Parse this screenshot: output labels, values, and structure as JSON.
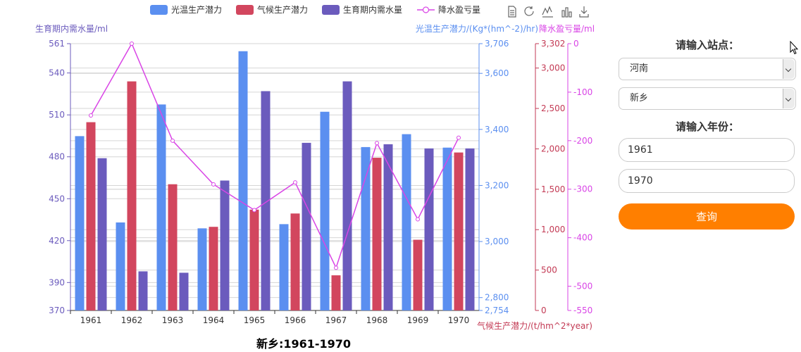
{
  "toolbar": {
    "icons": [
      "data-view-icon",
      "restore-icon",
      "line-switch-icon",
      "bar-switch-icon",
      "download-icon"
    ]
  },
  "form": {
    "station_label": "请输入站点：",
    "province_value": "河南",
    "city_value": "新乡",
    "year_label": "请输入年份：",
    "start_year": "1961",
    "end_year": "1970",
    "query_label": "查询",
    "query_color": "#ff7f00"
  },
  "chart_data": {
    "type": "bar",
    "title": "新乡:1961-1970",
    "categories": [
      "1961",
      "1962",
      "1963",
      "1964",
      "1965",
      "1966",
      "1967",
      "1968",
      "1969",
      "1970"
    ],
    "axes": {
      "water_demand": {
        "label": "生育期内需水量/ml",
        "color": "#6b5bbd",
        "range": [
          370,
          561
        ],
        "tick_values": [
          370,
          390,
          420,
          450,
          480,
          510,
          540,
          561
        ],
        "tick_labels": [
          "370",
          "390",
          "420",
          "450",
          "480",
          "510",
          "540",
          "561"
        ]
      },
      "light_temp": {
        "label": "光温生产潜力/(Kg*(hm^-2)/hr)",
        "color": "#5b8ff0",
        "range": [
          2754,
          3706
        ],
        "tick_values": [
          2754,
          2800,
          3000,
          3200,
          3400,
          3600,
          3706
        ],
        "tick_labels": [
          "2,754",
          "2,800",
          "3,000",
          "3,200",
          "3,400",
          "3,600",
          "3,706"
        ]
      },
      "climate": {
        "label": "气候生产潜力/(t/hm^2*year)",
        "color": "#c33a54",
        "range": [
          0,
          3302
        ],
        "tick_values": [
          0,
          500,
          1000,
          1500,
          2000,
          2500,
          3000,
          3302
        ],
        "tick_labels": [
          "0",
          "500",
          "1,000",
          "1,500",
          "2,000",
          "2,500",
          "3,000",
          "3,302"
        ]
      },
      "deficit": {
        "label": "降水盈亏量/ml",
        "color": "#d945e6",
        "range": [
          -550,
          0
        ],
        "tick_values": [
          -550,
          -500,
          -400,
          -300,
          -200,
          -100,
          0
        ],
        "tick_labels": [
          "-550",
          "-500",
          "-400",
          "-300",
          "-200",
          "-100",
          "0"
        ]
      }
    },
    "series": [
      {
        "name": "光温生产潜力",
        "type": "bar",
        "axis": "light_temp",
        "color": "#5b8ff0",
        "values": [
          3376,
          3068,
          3489,
          3047,
          3679,
          3062,
          3463,
          3337,
          3383,
          3335
        ]
      },
      {
        "name": "气候生产潜力",
        "type": "bar",
        "axis": "climate",
        "color": "#d2465e",
        "values": [
          2330,
          2835,
          1562,
          1035,
          1248,
          1200,
          435,
          1890,
          875,
          1955
        ]
      },
      {
        "name": "生育期内需水量",
        "type": "bar",
        "axis": "water_demand",
        "color": "#6b5bbd",
        "values": [
          479,
          398,
          397,
          463,
          527,
          490,
          534,
          489,
          486,
          486
        ]
      },
      {
        "name": "降水盈亏量",
        "type": "line",
        "axis": "deficit",
        "color": "#d945e6",
        "values": [
          -148,
          0,
          -200,
          -290,
          -343,
          -286,
          -462,
          -205,
          -362,
          -194
        ]
      }
    ],
    "legend_position": "top-center",
    "grid": true
  }
}
